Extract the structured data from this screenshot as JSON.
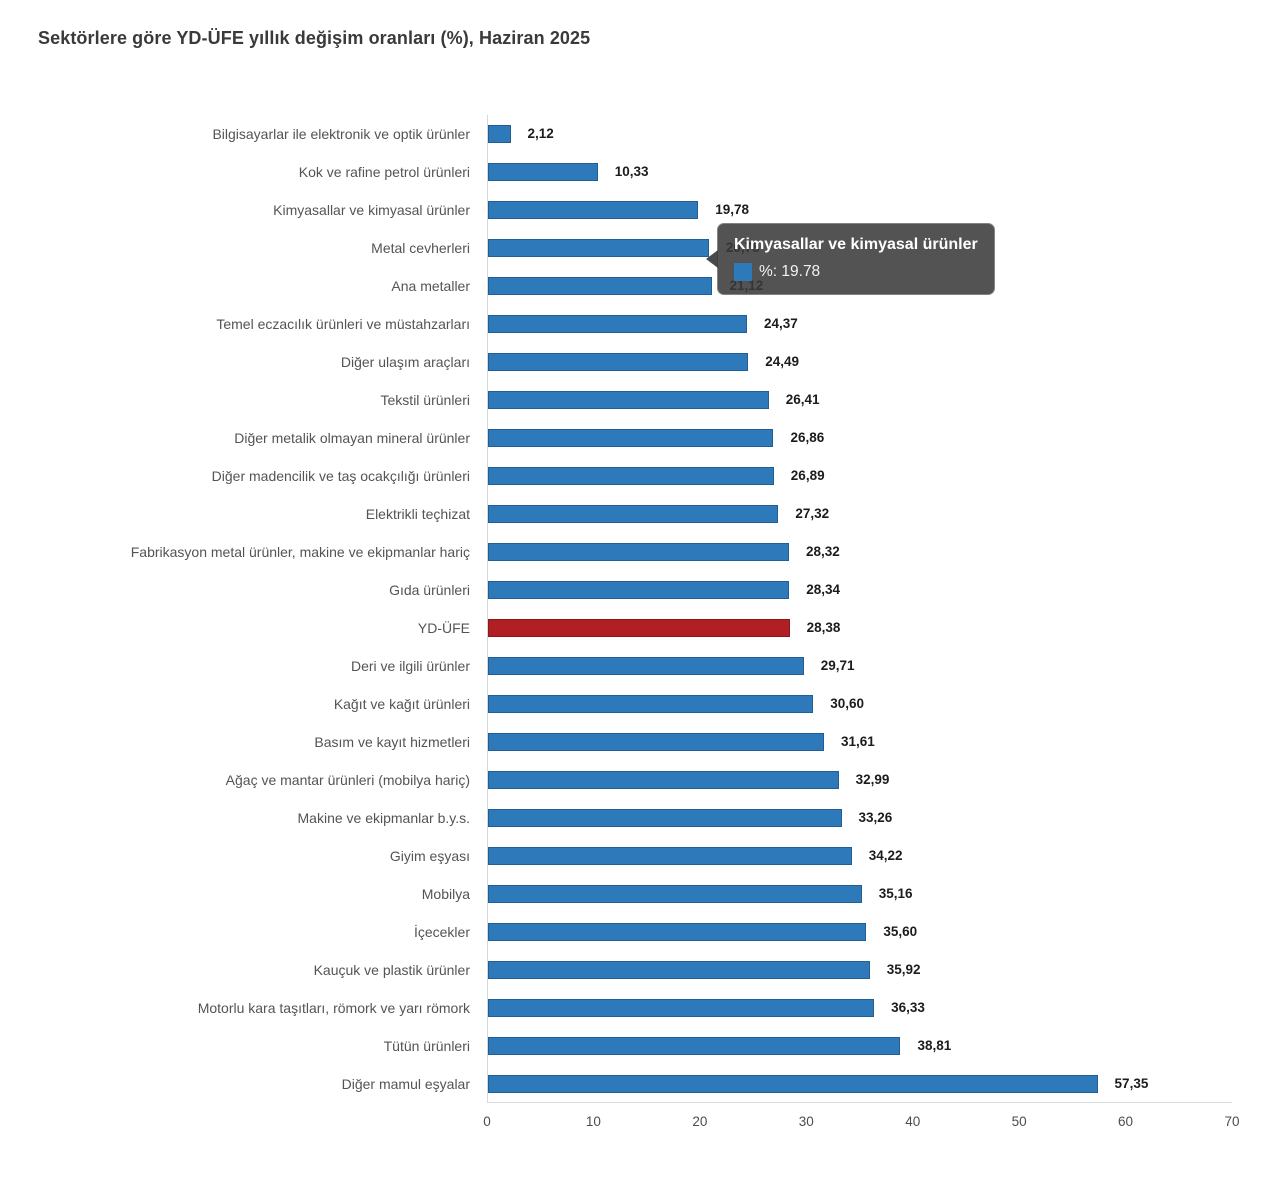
{
  "page": {
    "title": "Sektörlere göre YD-ÜFE yıllık değişim oranları (%), Haziran 2025"
  },
  "chart_data": {
    "type": "bar",
    "orientation": "horizontal",
    "title": "Sektörlere göre YD-ÜFE yıllık değişim oranları (%), Haziran 2025",
    "xlabel": "",
    "ylabel": "",
    "xlim": [
      0,
      70
    ],
    "x_ticks": [
      "0",
      "10",
      "20",
      "30",
      "40",
      "50",
      "60",
      "70"
    ],
    "grid": false,
    "legend": "none",
    "colors": {
      "bar": "#2e79b9",
      "highlight": "#b01f24"
    },
    "rows": [
      {
        "category": "Bilgisayarlar ile elektronik ve optik ürünler",
        "value": 2.12,
        "value_label": "2,12",
        "highlight": false
      },
      {
        "category": "Kok ve rafine petrol ürünleri",
        "value": 10.33,
        "value_label": "10,33",
        "highlight": false
      },
      {
        "category": "Kimyasallar ve kimyasal ürünler",
        "value": 19.78,
        "value_label": "19,78",
        "highlight": false
      },
      {
        "category": "Metal cevherleri",
        "value": 20.78,
        "value_label": "20,78",
        "highlight": false
      },
      {
        "category": "Ana metaller",
        "value": 21.12,
        "value_label": "21,12",
        "highlight": false
      },
      {
        "category": "Temel eczacılık ürünleri ve müstahzarları",
        "value": 24.37,
        "value_label": "24,37",
        "highlight": false
      },
      {
        "category": "Diğer ulaşım araçları",
        "value": 24.49,
        "value_label": "24,49",
        "highlight": false
      },
      {
        "category": "Tekstil ürünleri",
        "value": 26.41,
        "value_label": "26,41",
        "highlight": false
      },
      {
        "category": "Diğer metalik olmayan mineral ürünler",
        "value": 26.86,
        "value_label": "26,86",
        "highlight": false
      },
      {
        "category": "Diğer madencilik ve taş ocakçılığı ürünleri",
        "value": 26.89,
        "value_label": "26,89",
        "highlight": false
      },
      {
        "category": "Elektrikli teçhizat",
        "value": 27.32,
        "value_label": "27,32",
        "highlight": false
      },
      {
        "category": "Fabrikasyon metal ürünler, makine ve ekipmanlar hariç",
        "value": 28.32,
        "value_label": "28,32",
        "highlight": false
      },
      {
        "category": "Gıda ürünleri",
        "value": 28.34,
        "value_label": "28,34",
        "highlight": false
      },
      {
        "category": "YD-ÜFE",
        "value": 28.38,
        "value_label": "28,38",
        "highlight": true
      },
      {
        "category": "Deri ve ilgili ürünler",
        "value": 29.71,
        "value_label": "29,71",
        "highlight": false
      },
      {
        "category": "Kağıt ve kağıt ürünleri",
        "value": 30.6,
        "value_label": "30,60",
        "highlight": false
      },
      {
        "category": "Basım ve kayıt hizmetleri",
        "value": 31.61,
        "value_label": "31,61",
        "highlight": false
      },
      {
        "category": "Ağaç ve mantar ürünleri (mobilya hariç)",
        "value": 32.99,
        "value_label": "32,99",
        "highlight": false
      },
      {
        "category": "Makine ve ekipmanlar b.y.s.",
        "value": 33.26,
        "value_label": "33,26",
        "highlight": false
      },
      {
        "category": "Giyim eşyası",
        "value": 34.22,
        "value_label": "34,22",
        "highlight": false
      },
      {
        "category": "Mobilya",
        "value": 35.16,
        "value_label": "35,16",
        "highlight": false
      },
      {
        "category": "İçecekler",
        "value": 35.6,
        "value_label": "35,60",
        "highlight": false
      },
      {
        "category": "Kauçuk ve plastik ürünler",
        "value": 35.92,
        "value_label": "35,92",
        "highlight": false
      },
      {
        "category": "Motorlu kara taşıtları, römork ve yarı römork",
        "value": 36.33,
        "value_label": "36,33",
        "highlight": false
      },
      {
        "category": "Tütün ürünleri",
        "value": 38.81,
        "value_label": "38,81",
        "highlight": false
      },
      {
        "category": "Diğer mamul eşyalar",
        "value": 57.35,
        "value_label": "57,35",
        "highlight": false
      }
    ]
  },
  "tooltip": {
    "title": "Kimyasallar ve kimyasal ürünler",
    "value_text": "%: 19.78",
    "swatch_color": "#2e79b9"
  }
}
